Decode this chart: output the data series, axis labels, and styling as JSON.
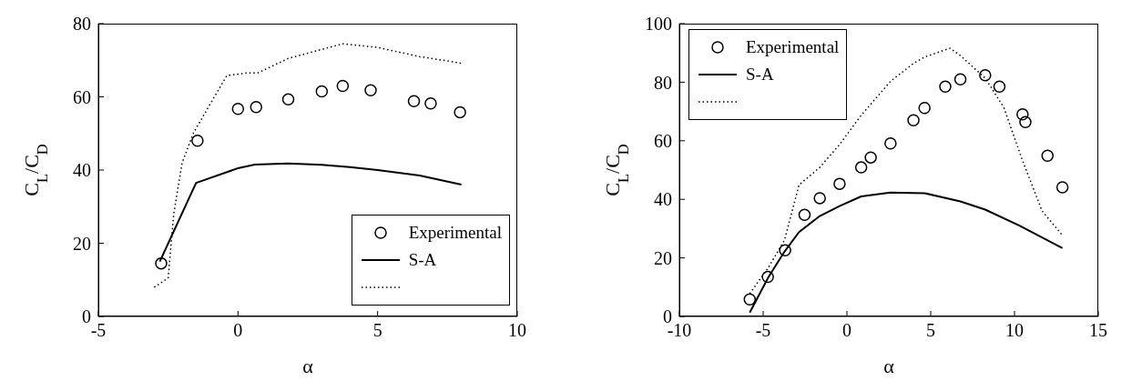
{
  "chart_data": [
    {
      "type": "scatter",
      "xlabel": "α",
      "ylabel": "C$_{L}$/C$_{D}$",
      "xlim": [
        -5,
        10
      ],
      "xticks": [
        -5,
        0,
        5,
        10
      ],
      "ylim": [
        0,
        80
      ],
      "yticks": [
        0,
        20,
        40,
        60,
        80
      ],
      "grid": false,
      "legend": "bottom right",
      "series": [
        {
          "name": "Experimental",
          "marker": "circle",
          "color": "#000000",
          "x": [
            -2.75,
            -1.45,
            0,
            0.65,
            1.8,
            3,
            3.75,
            4.75,
            6.3,
            6.9,
            7.95
          ],
          "values": [
            14.5,
            48,
            56.7,
            57.2,
            59.3,
            61.5,
            63,
            61.8,
            58.8,
            58.2,
            55.8
          ]
        },
        {
          "name": "S-A",
          "type": "line",
          "marker": "none",
          "line_style": "solid",
          "color": "#000000",
          "x": [
            -2.8,
            -1.5,
            0,
            0.6,
            1.8,
            3,
            4,
            5,
            6.5,
            8
          ],
          "values": [
            15,
            36.5,
            40.5,
            41.5,
            41.8,
            41.4,
            40.8,
            40,
            38.5,
            36
          ]
        },
        {
          "type": "line",
          "marker": "none",
          "line_style": "dotted",
          "color": "#000000",
          "x": [
            -3,
            -2.5,
            -2.3,
            -2,
            -1.6,
            -1,
            -0.4,
            0.3,
            0.7,
            1.8,
            3.75,
            5,
            6.5,
            8
          ],
          "values": [
            8,
            10.5,
            28,
            42,
            50,
            58,
            65.8,
            66.5,
            66.5,
            70.5,
            74.5,
            73.5,
            71,
            69.2
          ]
        }
      ]
    },
    {
      "type": "scatter",
      "xlabel": "α",
      "ylabel": "C$_{L}$/C$_{D}$",
      "xlim": [
        -10,
        15
      ],
      "xticks": [
        -10,
        -5,
        0,
        5,
        10,
        15
      ],
      "ylim": [
        0,
        100
      ],
      "yticks": [
        0,
        20,
        40,
        60,
        80,
        100
      ],
      "grid": false,
      "legend": "top left",
      "series": [
        {
          "name": "Experimental",
          "marker": "circle",
          "color": "#000000",
          "x": [
            -5.8,
            -4.72,
            -3.69,
            -2.53,
            -1.62,
            -0.44,
            0.85,
            1.42,
            2.6,
            3.97,
            4.63,
            5.87,
            6.77,
            8.25,
            9.1,
            10.48,
            10.65,
            11.97,
            12.86
          ],
          "values": [
            5.8,
            13.5,
            22.6,
            34.7,
            40.4,
            45.3,
            50.9,
            54.3,
            59.1,
            67,
            71.2,
            78.5,
            81,
            82.4,
            78.5,
            69,
            66.4,
            54.9,
            44.1
          ]
        },
        {
          "name": "S-A",
          "type": "line",
          "marker": "none",
          "line_style": "solid",
          "color": "#000000",
          "x": [
            -5.8,
            -4.7,
            -3.73,
            -2.86,
            -1.62,
            -0.44,
            0.85,
            2.6,
            4.63,
            6.77,
            8.25,
            10.24,
            12.86
          ],
          "values": [
            1.3,
            13.3,
            22.1,
            28.8,
            34.3,
            37.7,
            41,
            42.3,
            42.1,
            39.3,
            36.5,
            31.2,
            23.3
          ]
        },
        {
          "type": "line",
          "marker": "none",
          "line_style": "dotted",
          "color": "#000000",
          "x": [
            -5.8,
            -4.7,
            -3.73,
            -2.86,
            -1.62,
            -0.44,
            0.85,
            2.6,
            3.97,
            4.63,
            6.15,
            6.77,
            8.25,
            9.36,
            10.48,
            11.65,
            12.86
          ],
          "values": [
            7.8,
            16.6,
            26,
            44.9,
            50.9,
            58.7,
            68.7,
            80.3,
            86.4,
            88.6,
            91.6,
            89.1,
            81.4,
            71.4,
            53.2,
            36,
            27.7
          ]
        }
      ]
    }
  ]
}
